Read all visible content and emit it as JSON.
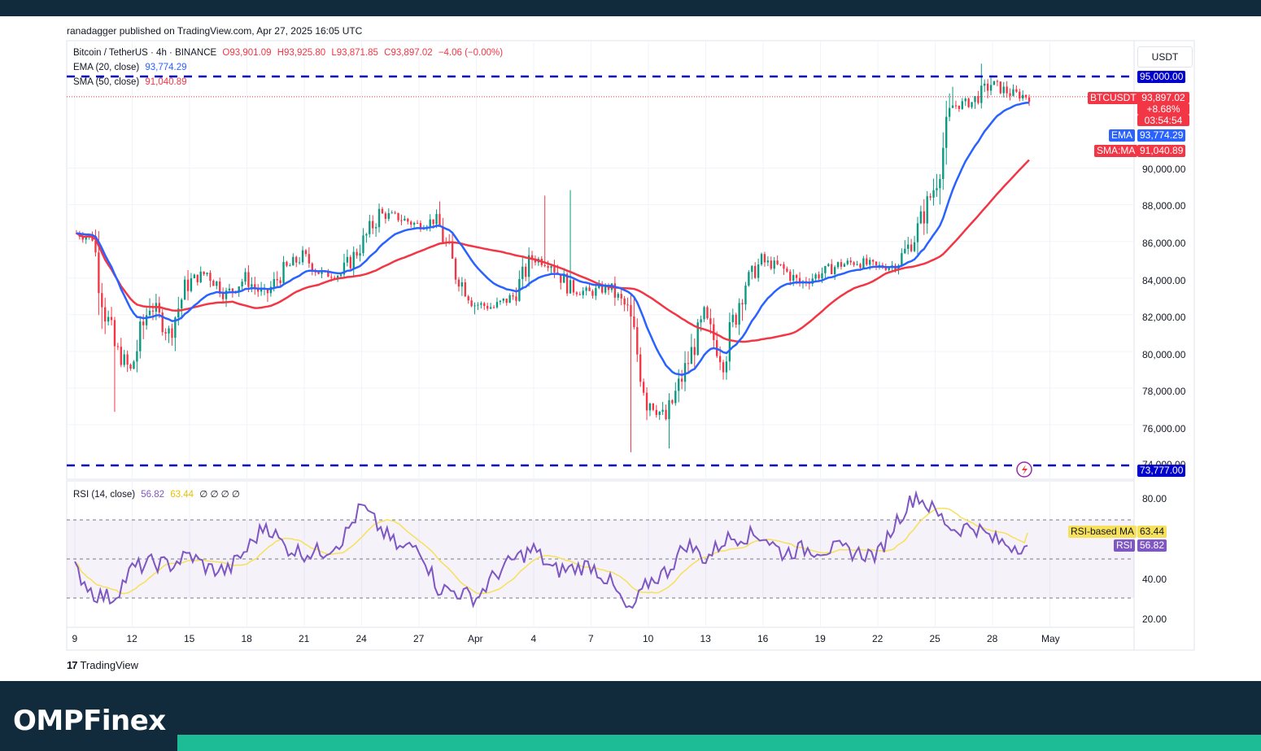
{
  "header": {
    "published": "ranadagger published on TradingView.com, Apr 27, 2025 16:05 UTC"
  },
  "legend": {
    "symbol": "Bitcoin / TetherUS · 4h · BINANCE",
    "open": "O93,901.09",
    "high": "H93,925.80",
    "low": "L93,871.85",
    "close": "C93,897.02",
    "change": "−4.06 (−0.00%)",
    "ema_label": "EMA (20, close)",
    "ema_value": "93,774.29",
    "sma_label": "SMA (50, close)",
    "sma_value": "91,040.89",
    "rsi_label": "RSI (14, close)",
    "rsi_value": "56.82",
    "rsi_ma_value": "63.44",
    "rsi_extra": "∅ ∅ ∅ ∅"
  },
  "price_scale": {
    "currency": "USDT",
    "ticks": [
      "90,000.00",
      "88,000.00",
      "86,000.00",
      "84,000.00",
      "82,000.00",
      "80,000.00",
      "78,000.00",
      "76,000.00",
      "74,000.00"
    ],
    "level_high": "95,000.00",
    "level_low": "73,777.00",
    "last_symbol": "BTCUSDT",
    "last_price": "93,897.02",
    "last_change": "+8.68%",
    "countdown": "03:54:54",
    "ema_tag": "EMA",
    "ema_tag_value": "93,774.29",
    "sma_tag": "SMA:MA",
    "sma_tag_value": "91,040.89"
  },
  "rsi_scale": {
    "ticks": [
      "80.00",
      "40.00",
      "20.00"
    ],
    "ma_tag": "RSI-based MA",
    "ma_tag_value": "63.44",
    "rsi_tag": "RSI",
    "rsi_tag_value": "56.82"
  },
  "time_axis": [
    "9",
    "12",
    "15",
    "18",
    "21",
    "24",
    "27",
    "Apr",
    "4",
    "7",
    "10",
    "13",
    "16",
    "19",
    "22",
    "25",
    "28",
    "May"
  ],
  "footer": {
    "tradingview": "TradingView",
    "brand": "OMPFinex"
  },
  "colors": {
    "up": "#089981",
    "down": "#f23645",
    "ema": "#2962ff",
    "sma": "#f23645",
    "level": "#0000cc",
    "rsi": "#7e57c2",
    "rsi_ma": "#f7e05a",
    "accent": "#1ebc96",
    "navy": "#112a3c"
  },
  "chart_data": [
    {
      "type": "candlestick",
      "title": "Bitcoin / TetherUS · 4h · BINANCE",
      "x_range": [
        "Mar 9",
        "May 1"
      ],
      "ylim": [
        73500,
        96500
      ],
      "horizontal_levels": [
        95000,
        73777
      ],
      "ema20_last": 93774.29,
      "sma50_last": 91040.89,
      "last_close": 93897.02,
      "daily_closes": {
        "x": [
          "Mar 9",
          "Mar 10",
          "Mar 11",
          "Mar 12",
          "Mar 13",
          "Mar 14",
          "Mar 15",
          "Mar 16",
          "Mar 17",
          "Mar 18",
          "Mar 19",
          "Mar 20",
          "Mar 21",
          "Mar 22",
          "Mar 23",
          "Mar 24",
          "Mar 25",
          "Mar 26",
          "Mar 27",
          "Mar 28",
          "Mar 29",
          "Mar 30",
          "Mar 31",
          "Apr 1",
          "Apr 2",
          "Apr 3",
          "Apr 4",
          "Apr 5",
          "Apr 6",
          "Apr 7",
          "Apr 8",
          "Apr 9",
          "Apr 10",
          "Apr 11",
          "Apr 12",
          "Apr 13",
          "Apr 14",
          "Apr 15",
          "Apr 16",
          "Apr 17",
          "Apr 18",
          "Apr 19",
          "Apr 20",
          "Apr 21",
          "Apr 22",
          "Apr 23",
          "Apr 24",
          "Apr 25",
          "Apr 26",
          "Apr 27"
        ],
        "y": [
          86200,
          80500,
          78900,
          82700,
          81000,
          83800,
          84300,
          83100,
          84000,
          83000,
          84400,
          85200,
          84200,
          84200,
          85700,
          87500,
          87300,
          86900,
          87200,
          84300,
          82600,
          82400,
          83000,
          85100,
          84800,
          83400,
          83200,
          83500,
          82300,
          77500,
          76300,
          79000,
          81800,
          79500,
          83500,
          84900,
          84600,
          83700,
          84200,
          84700,
          84900,
          84600,
          84700,
          86200,
          88900,
          93400,
          93600,
          94600,
          94100,
          93897
        ]
      }
    },
    {
      "type": "line",
      "title": "RSI (14, close)",
      "ylim": [
        15,
        90
      ],
      "bands": [
        30,
        50,
        70
      ],
      "rsi_last": 56.82,
      "rsi_ma_last": 63.44,
      "daily_rsi": {
        "x": [
          "Mar 9",
          "Mar 10",
          "Mar 11",
          "Mar 12",
          "Mar 13",
          "Mar 14",
          "Mar 15",
          "Mar 16",
          "Mar 17",
          "Mar 18",
          "Mar 19",
          "Mar 20",
          "Mar 21",
          "Mar 22",
          "Mar 23",
          "Mar 24",
          "Mar 25",
          "Mar 26",
          "Mar 27",
          "Mar 28",
          "Mar 29",
          "Mar 30",
          "Mar 31",
          "Apr 1",
          "Apr 2",
          "Apr 3",
          "Apr 4",
          "Apr 5",
          "Apr 6",
          "Apr 7",
          "Apr 8",
          "Apr 9",
          "Apr 10",
          "Apr 11",
          "Apr 12",
          "Apr 13",
          "Apr 14",
          "Apr 15",
          "Apr 16",
          "Apr 17",
          "Apr 18",
          "Apr 19",
          "Apr 20",
          "Apr 21",
          "Apr 22",
          "Apr 23",
          "Apr 24",
          "Apr 25",
          "Apr 26",
          "Apr 27"
        ],
        "y": [
          45,
          32,
          30,
          45,
          48,
          47,
          52,
          45,
          44,
          55,
          68,
          56,
          53,
          54,
          60,
          77,
          65,
          55,
          57,
          35,
          33,
          30,
          42,
          50,
          55,
          44,
          45,
          47,
          38,
          22,
          38,
          44,
          58,
          50,
          60,
          62,
          62,
          53,
          55,
          55,
          55,
          53,
          52,
          70,
          83,
          74,
          65,
          67,
          60,
          57
        ]
      }
    }
  ]
}
